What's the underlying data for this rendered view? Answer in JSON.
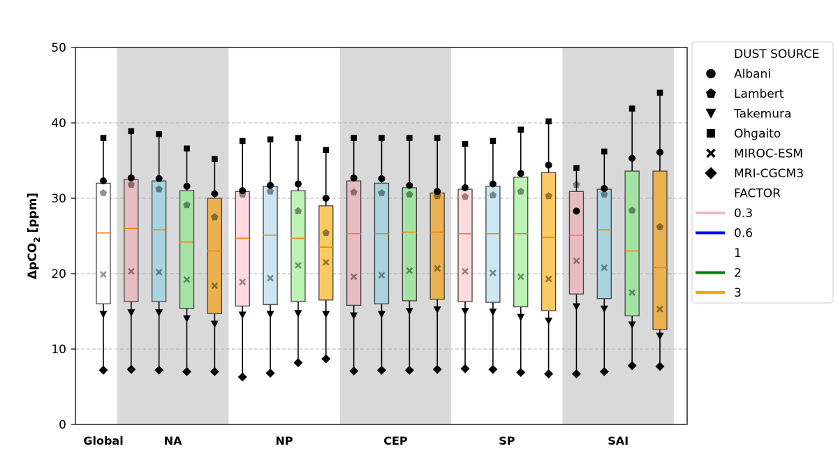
{
  "chart_data": {
    "type": "box",
    "ylabel_main": "ΔpCO",
    "ylabel_sub": "2",
    "ylabel_unit": " [ppm]",
    "ylim": [
      0,
      50
    ],
    "yticks": [
      0,
      10,
      20,
      30,
      40,
      50
    ],
    "grid": "horizontal dashed",
    "legend_placement": "outside right",
    "groups": [
      {
        "label": "Global",
        "boxes": [
          0
        ],
        "shaded": false
      },
      {
        "label": "NA",
        "boxes": [
          1,
          2,
          3,
          4
        ],
        "shaded": true
      },
      {
        "label": "NP",
        "boxes": [
          5,
          6,
          7,
          8
        ],
        "shaded": false
      },
      {
        "label": "CEP",
        "boxes": [
          9,
          10,
          11,
          12
        ],
        "shaded": true
      },
      {
        "label": "SP",
        "boxes": [
          13,
          14,
          15,
          16
        ],
        "shaded": false
      },
      {
        "label": "SAI",
        "boxes": [
          17,
          18,
          19,
          20
        ],
        "shaded": true
      }
    ],
    "boxes": [
      {
        "group": "Global",
        "factor": "1",
        "color": "#ffffff",
        "q1": 16.0,
        "median": 25.4,
        "q3": 32.0,
        "albani": 32.3,
        "lambert": 30.7,
        "takemura": 14.6,
        "ohgaito": 38.0,
        "miroc": 19.9,
        "mri": 7.2
      },
      {
        "group": "NA",
        "factor": "0.3",
        "color": "#e8bcc3",
        "q1": 16.3,
        "median": 26.0,
        "q3": 32.5,
        "albani": 32.7,
        "lambert": 31.8,
        "takemura": 14.8,
        "ohgaito": 38.9,
        "miroc": 20.3,
        "mri": 7.3
      },
      {
        "group": "NA",
        "factor": "0.6",
        "color": "#a9d3de",
        "q1": 16.3,
        "median": 25.8,
        "q3": 32.3,
        "albani": 32.6,
        "lambert": 31.2,
        "takemura": 14.8,
        "ohgaito": 38.5,
        "miroc": 20.2,
        "mri": 7.2
      },
      {
        "group": "NA",
        "factor": "2",
        "color": "#a3e3a3",
        "q1": 15.4,
        "median": 24.2,
        "q3": 31.0,
        "albani": 31.6,
        "lambert": 29.1,
        "takemura": 14.0,
        "ohgaito": 36.6,
        "miroc": 19.2,
        "mri": 7.0
      },
      {
        "group": "NA",
        "factor": "3",
        "color": "#ebb14f",
        "q1": 14.7,
        "median": 23.0,
        "q3": 30.0,
        "albani": 30.6,
        "lambert": 27.5,
        "takemura": 13.3,
        "ohgaito": 35.2,
        "miroc": 18.4,
        "mri": 7.0
      },
      {
        "group": "NP",
        "factor": "0.3",
        "color": "#ffd9e0",
        "q1": 15.7,
        "median": 24.7,
        "q3": 30.9,
        "albani": 31.0,
        "lambert": 30.5,
        "takemura": 14.5,
        "ohgaito": 37.6,
        "miroc": 18.9,
        "mri": 6.3
      },
      {
        "group": "NP",
        "factor": "0.6",
        "color": "#cce7f1",
        "q1": 15.9,
        "median": 25.1,
        "q3": 31.6,
        "albani": 31.7,
        "lambert": 30.9,
        "takemura": 14.6,
        "ohgaito": 37.8,
        "miroc": 19.4,
        "mri": 6.8
      },
      {
        "group": "NP",
        "factor": "2",
        "color": "#bdf4b6",
        "q1": 16.3,
        "median": 24.7,
        "q3": 31.0,
        "albani": 31.9,
        "lambert": 28.3,
        "takemura": 14.7,
        "ohgaito": 38.0,
        "miroc": 21.1,
        "mri": 8.2
      },
      {
        "group": "NP",
        "factor": "3",
        "color": "#fdca62",
        "q1": 16.5,
        "median": 23.5,
        "q3": 29.0,
        "albani": 30.0,
        "lambert": 25.4,
        "takemura": 14.6,
        "ohgaito": 36.4,
        "miroc": 21.5,
        "mri": 8.7
      },
      {
        "group": "CEP",
        "factor": "0.3",
        "color": "#e8bcc3",
        "q1": 15.8,
        "median": 25.3,
        "q3": 32.3,
        "albani": 32.7,
        "lambert": 30.8,
        "takemura": 14.4,
        "ohgaito": 38.0,
        "miroc": 19.6,
        "mri": 7.1
      },
      {
        "group": "CEP",
        "factor": "0.6",
        "color": "#a9d3de",
        "q1": 16.0,
        "median": 25.3,
        "q3": 32.0,
        "albani": 32.6,
        "lambert": 30.7,
        "takemura": 14.6,
        "ohgaito": 38.0,
        "miroc": 19.8,
        "mri": 7.2
      },
      {
        "group": "CEP",
        "factor": "2",
        "color": "#a3e3a3",
        "q1": 16.4,
        "median": 25.5,
        "q3": 31.4,
        "albani": 31.7,
        "lambert": 30.5,
        "takemura": 15.0,
        "ohgaito": 38.0,
        "miroc": 20.4,
        "mri": 7.2
      },
      {
        "group": "CEP",
        "factor": "3",
        "color": "#ebb14f",
        "q1": 16.6,
        "median": 25.5,
        "q3": 30.7,
        "albani": 30.9,
        "lambert": 30.3,
        "takemura": 15.2,
        "ohgaito": 38.0,
        "miroc": 20.7,
        "mri": 7.3
      },
      {
        "group": "SP",
        "factor": "0.3",
        "color": "#ffd9e0",
        "q1": 16.3,
        "median": 25.3,
        "q3": 31.2,
        "albani": 31.4,
        "lambert": 30.2,
        "takemura": 15.0,
        "ohgaito": 37.2,
        "miroc": 20.3,
        "mri": 7.4
      },
      {
        "group": "SP",
        "factor": "0.6",
        "color": "#cce7f1",
        "q1": 16.2,
        "median": 25.3,
        "q3": 31.6,
        "albani": 31.9,
        "lambert": 30.4,
        "takemura": 14.9,
        "ohgaito": 37.6,
        "miroc": 20.1,
        "mri": 7.3
      },
      {
        "group": "SP",
        "factor": "2",
        "color": "#bdf4b6",
        "q1": 15.6,
        "median": 25.3,
        "q3": 32.8,
        "albani": 33.3,
        "lambert": 30.9,
        "takemura": 14.2,
        "ohgaito": 39.1,
        "miroc": 19.6,
        "mri": 6.9
      },
      {
        "group": "SP",
        "factor": "3",
        "color": "#fdca62",
        "q1": 15.1,
        "median": 24.8,
        "q3": 33.4,
        "albani": 34.4,
        "lambert": 30.3,
        "takemura": 13.7,
        "ohgaito": 40.2,
        "miroc": 19.3,
        "mri": 6.7
      },
      {
        "group": "SAI",
        "factor": "0.3",
        "color": "#e8bcc3",
        "q1": 17.3,
        "median": 25.1,
        "q3": 30.9,
        "albani": 28.3,
        "lambert": 31.8,
        "takemura": 15.6,
        "ohgaito": 34.0,
        "miroc": 21.7,
        "mri": 6.7
      },
      {
        "group": "SAI",
        "factor": "0.6",
        "color": "#a9d3de",
        "q1": 16.7,
        "median": 25.8,
        "q3": 31.2,
        "albani": 31.3,
        "lambert": 30.5,
        "takemura": 15.3,
        "ohgaito": 36.2,
        "miroc": 20.8,
        "mri": 7.0
      },
      {
        "group": "SAI",
        "factor": "2",
        "color": "#a3e3a3",
        "q1": 14.4,
        "median": 23.0,
        "q3": 33.6,
        "albani": 35.3,
        "lambert": 28.4,
        "takemura": 13.2,
        "ohgaito": 41.9,
        "miroc": 17.5,
        "mri": 7.8
      },
      {
        "group": "SAI",
        "factor": "3",
        "color": "#ebb14f",
        "q1": 12.6,
        "median": 20.8,
        "q3": 33.6,
        "albani": 36.1,
        "lambert": 26.2,
        "takemura": 11.7,
        "ohgaito": 44.0,
        "miroc": 15.3,
        "mri": 7.7
      }
    ],
    "legend": {
      "section1_title": "DUST SOURCE",
      "sources": [
        {
          "label": "Albani",
          "marker": "circle"
        },
        {
          "label": "Lambert",
          "marker": "pentagon"
        },
        {
          "label": "Takemura",
          "marker": "triangle-down"
        },
        {
          "label": "Ohgaito",
          "marker": "square"
        },
        {
          "label": "MIROC-ESM",
          "marker": "x"
        },
        {
          "label": "MRI-CGCM3",
          "marker": "diamond"
        }
      ],
      "section2_title": "FACTOR",
      "factors": [
        {
          "label": "0.3",
          "color": "#f4b7c3"
        },
        {
          "label": "0.6",
          "color": "#0000ff"
        },
        {
          "label": "1",
          "color": "#ffffff"
        },
        {
          "label": "2",
          "color": "#008000"
        },
        {
          "label": "3",
          "color": "#ffa500"
        }
      ]
    },
    "colors": {
      "shade": "#d9d9d9",
      "median": "#ff7f0e",
      "grid": "#b0b0b0"
    }
  }
}
